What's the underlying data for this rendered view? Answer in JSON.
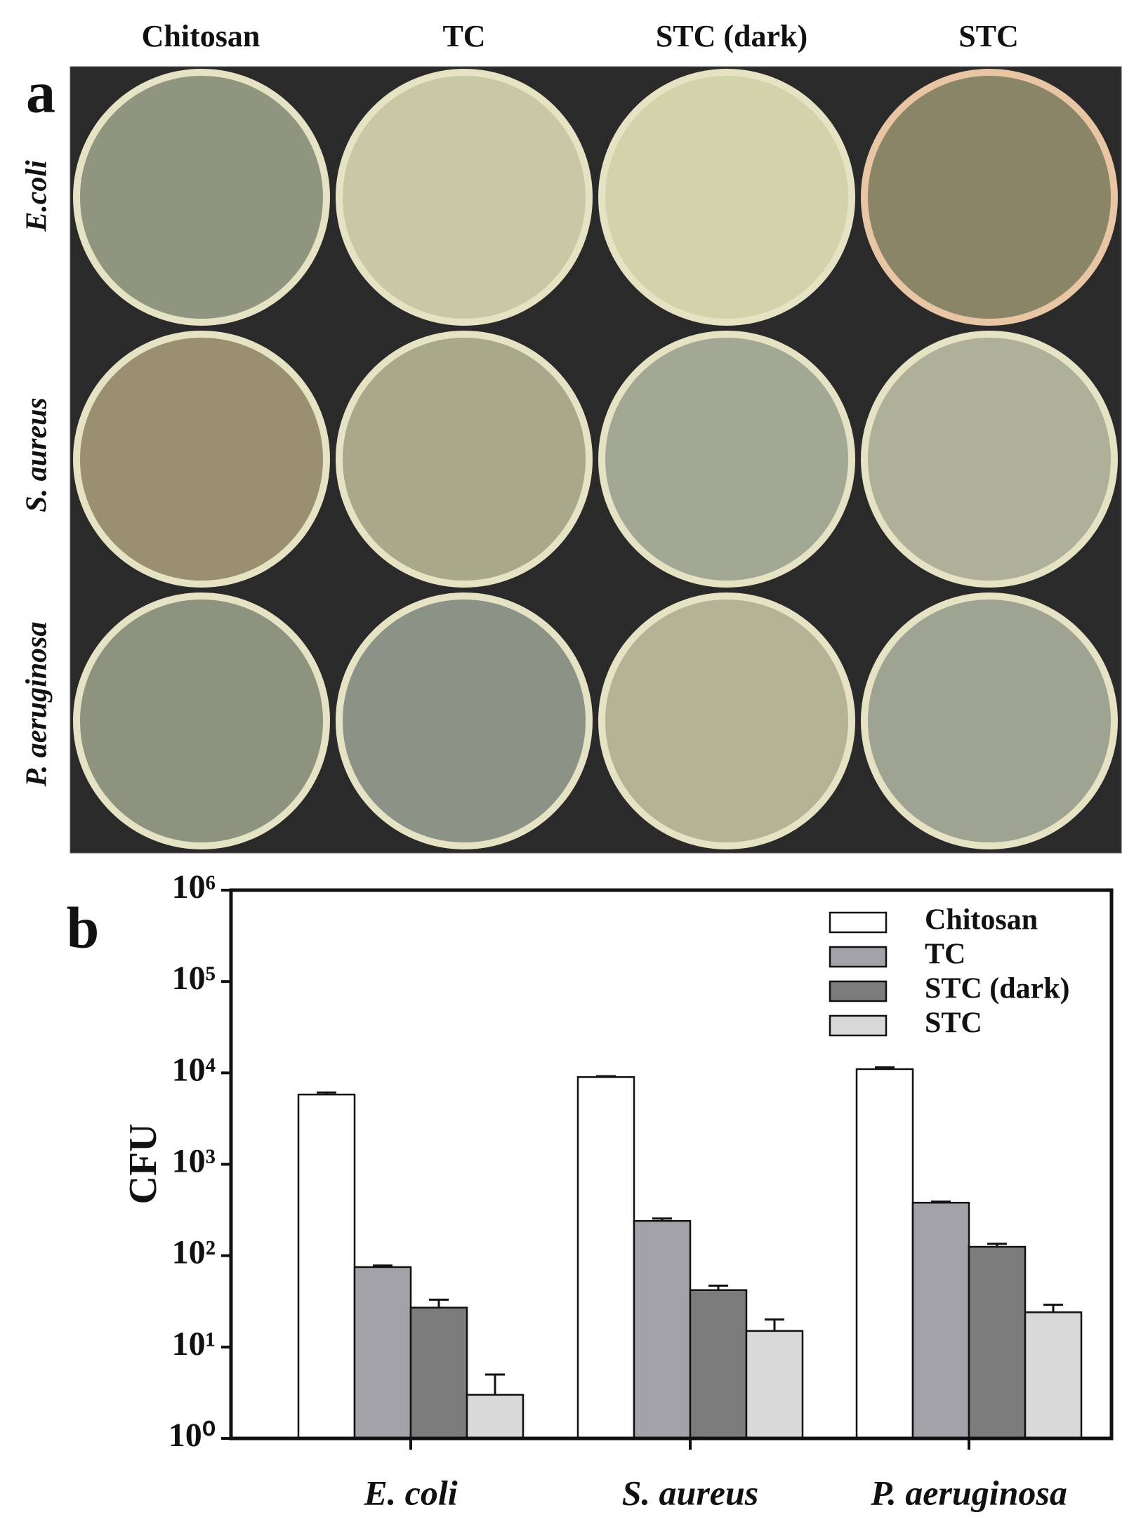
{
  "panel_a": {
    "label": "a",
    "columns": [
      "Chitosan",
      "TC",
      "STC (dark)",
      "STC"
    ],
    "rows": [
      "E.coli",
      "S. aureus",
      "P. aeruginosa"
    ]
  },
  "chart_data": {
    "type": "bar",
    "panel_label": "b",
    "ylabel": "CFU",
    "categories": [
      "E. coli",
      "S. aureus",
      "P. aeruginosa"
    ],
    "series": [
      {
        "name": "Chitosan",
        "color": "#ffffff",
        "values": [
          5800,
          9000,
          11000
        ],
        "errors": [
          300,
          200,
          500
        ]
      },
      {
        "name": "TC",
        "color": "#a2a2a8",
        "values": [
          75,
          240,
          380
        ],
        "errors": [
          3,
          15,
          10
        ]
      },
      {
        "name": "STC (dark)",
        "color": "#7c7c7c",
        "values": [
          27,
          42,
          125
        ],
        "errors": [
          6,
          5,
          10
        ]
      },
      {
        "name": "STC",
        "color": "#d9d9d9",
        "values": [
          3,
          15,
          24
        ],
        "errors": [
          2,
          5,
          5
        ]
      }
    ],
    "log_scale": true,
    "ylim": [
      1,
      1000000
    ],
    "yticks": [
      {
        "value": 1,
        "label": "10⁰"
      },
      {
        "value": 10,
        "label": "10¹"
      },
      {
        "value": 100,
        "label": "10²"
      },
      {
        "value": 1000,
        "label": "10³"
      },
      {
        "value": 10000,
        "label": "10⁴"
      },
      {
        "value": 100000,
        "label": "10⁵"
      },
      {
        "value": 1000000,
        "label": "10⁶"
      }
    ],
    "legend": "upper right"
  }
}
